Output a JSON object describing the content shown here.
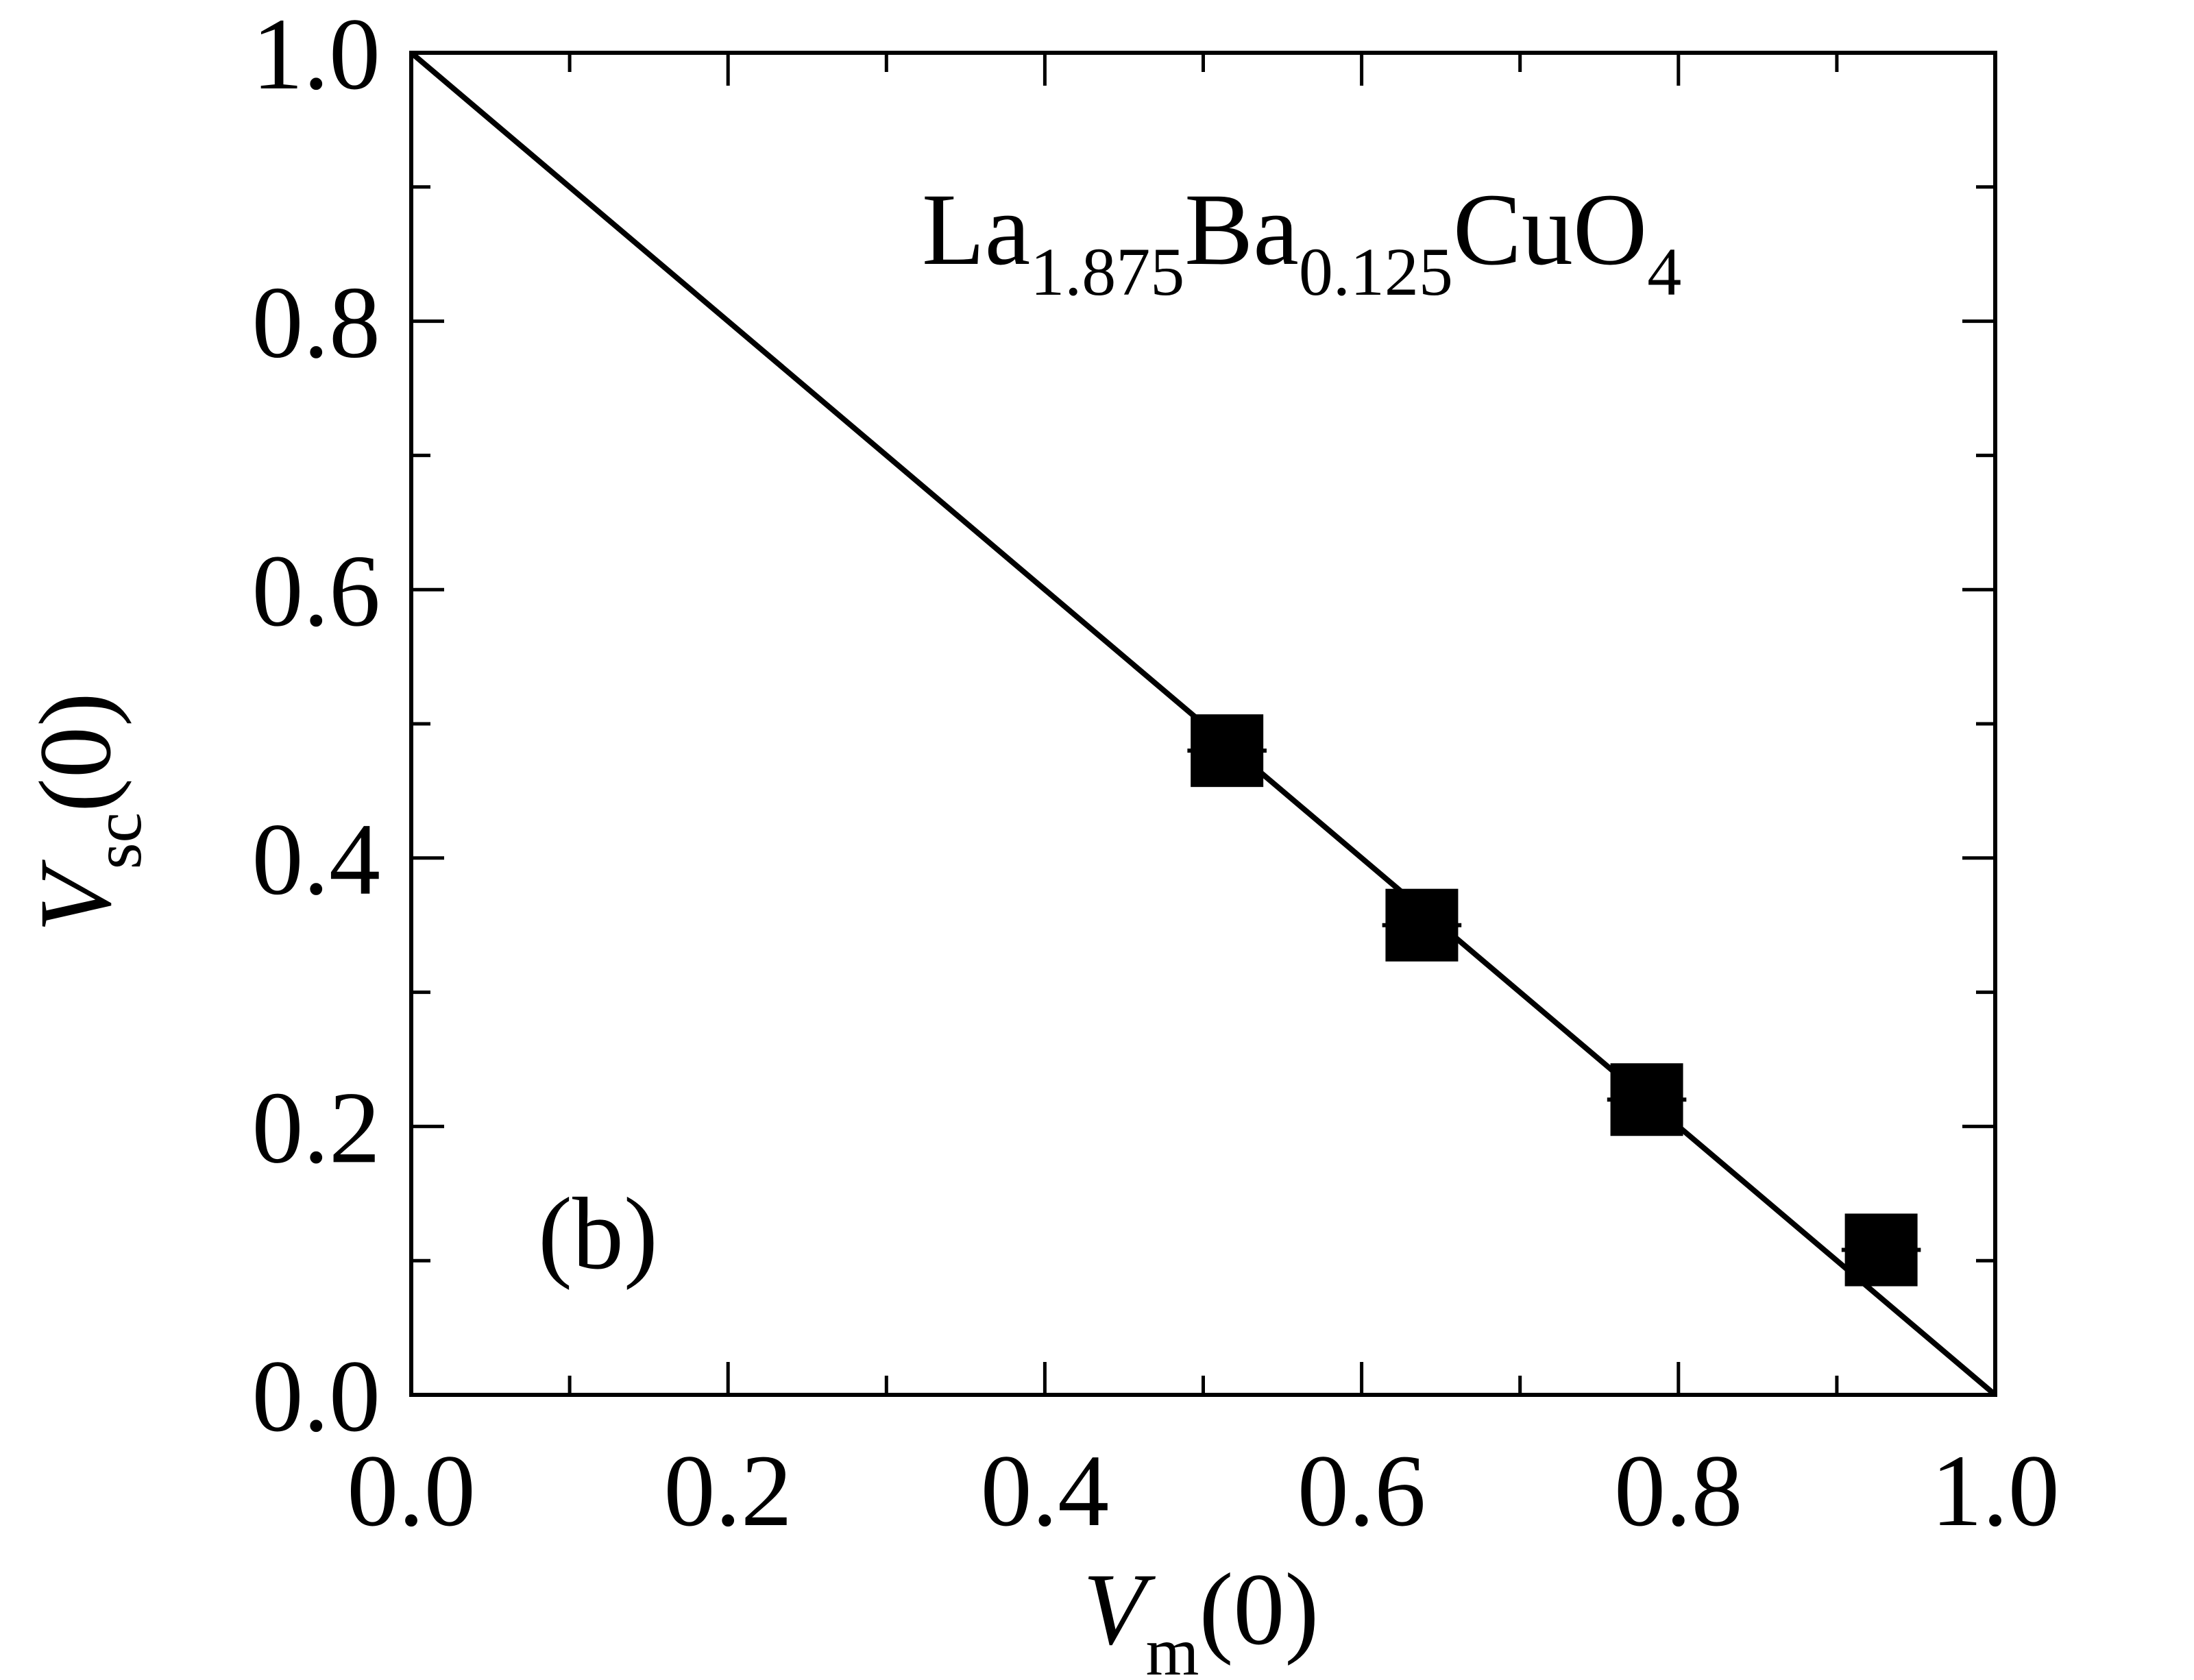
{
  "chart_data": {
    "type": "scatter",
    "formula": {
      "parts": [
        {
          "text": "La",
          "sub": false
        },
        {
          "text": "1.875",
          "sub": true
        },
        {
          "text": "Ba",
          "sub": false
        },
        {
          "text": "0.125",
          "sub": true
        },
        {
          "text": "CuO",
          "sub": false
        },
        {
          "text": "4",
          "sub": true
        }
      ]
    },
    "panel_label": "(b)",
    "xlabel": {
      "main": "V",
      "sub": "m",
      "tail": "(0)"
    },
    "ylabel": {
      "main": "V",
      "sub": "sc",
      "tail": "(0)"
    },
    "xlim": [
      0.0,
      1.0
    ],
    "ylim": [
      0.0,
      1.0
    ],
    "x_ticks": [
      "0.0",
      "0.2",
      "0.4",
      "0.6",
      "0.8",
      "1.0"
    ],
    "y_ticks": [
      "0.0",
      "0.2",
      "0.4",
      "0.6",
      "0.8",
      "1.0"
    ],
    "minor_tick_step": 0.1,
    "grid": false,
    "series": [
      {
        "marker": "square",
        "color": "#000000",
        "points": [
          {
            "x": 0.515,
            "y": 0.48,
            "xerr": 0.025
          },
          {
            "x": 0.638,
            "y": 0.35,
            "xerr": 0.025
          },
          {
            "x": 0.78,
            "y": 0.22,
            "xerr": 0.025
          },
          {
            "x": 0.928,
            "y": 0.108,
            "xerr": 0.025
          }
        ]
      }
    ],
    "reference_line": {
      "x": [
        0.0,
        1.0
      ],
      "y": [
        1.0,
        0.0
      ],
      "color": "#000000"
    }
  }
}
